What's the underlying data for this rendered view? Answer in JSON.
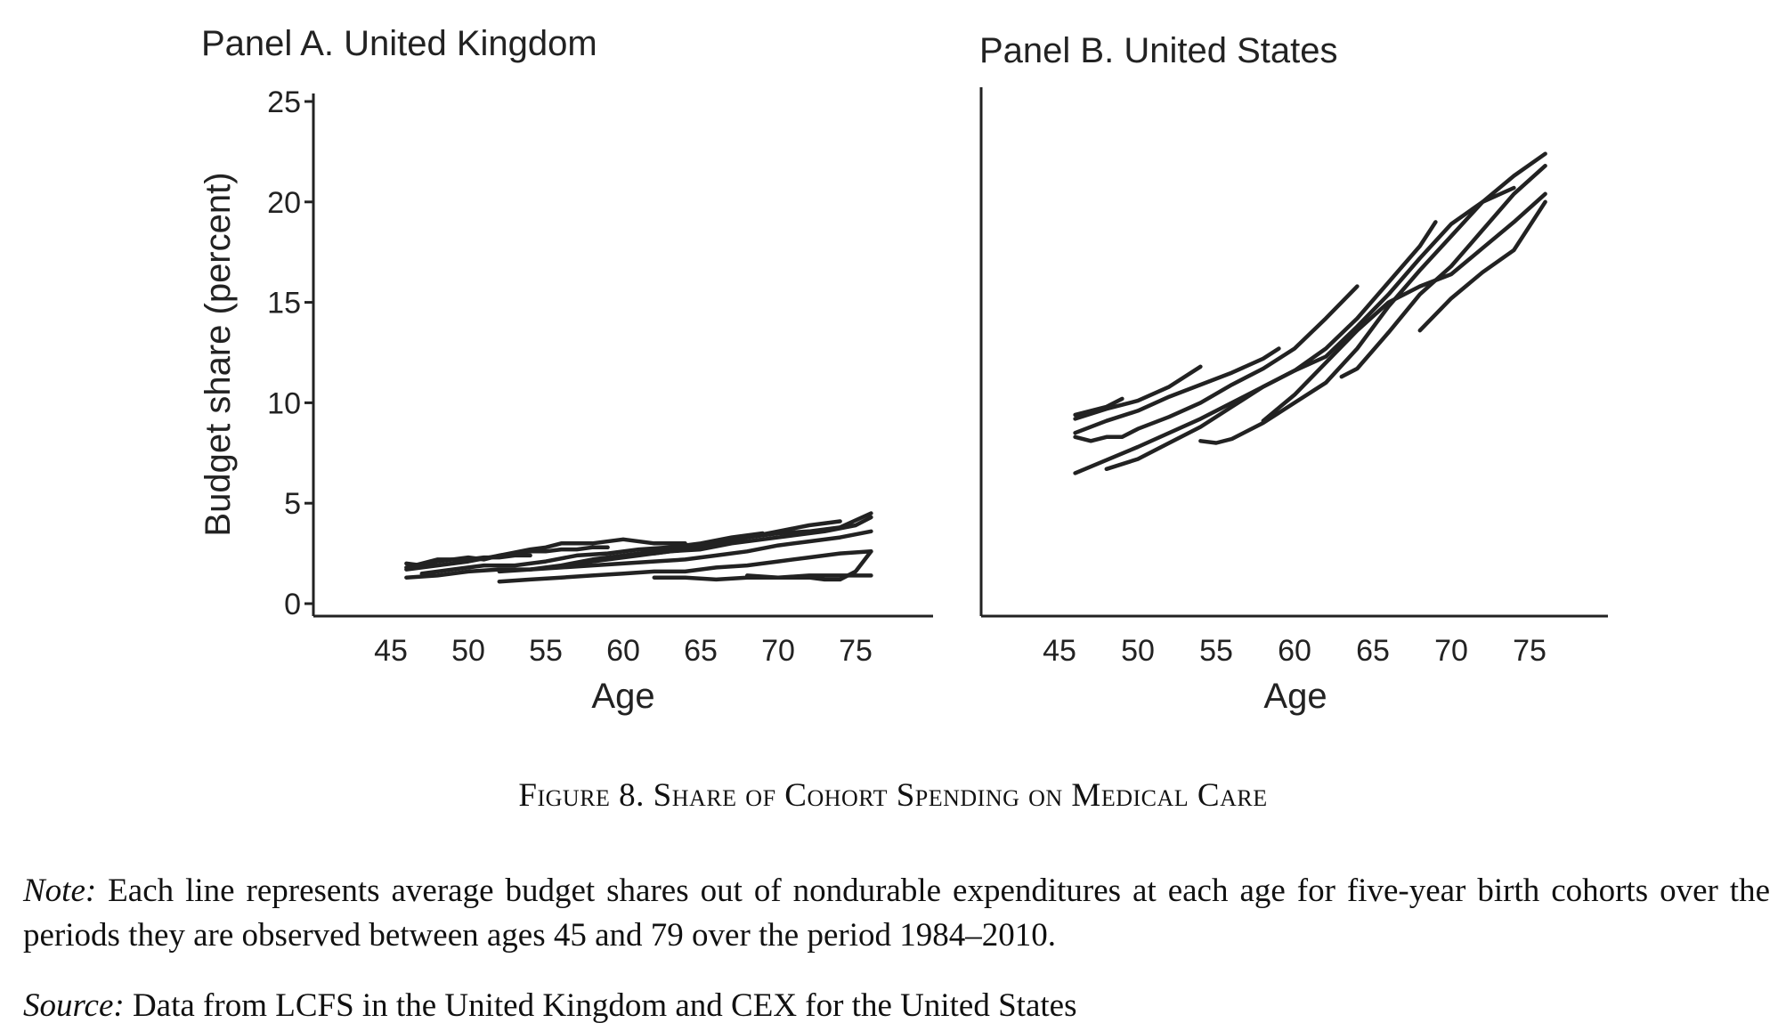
{
  "figure": {
    "caption": "Figure 8. Share of Cohort Spending on Medical Care",
    "note_label": "Note:",
    "note_text": "Each line represents average budget shares out of nondurable expenditures at each age for five-year birth cohorts over the periods they are observed between ages 45 and 79 over the period 1984–2010.",
    "source_label": "Source:",
    "source_text": "Data from LCFS in the United Kingdom and CEX for the United States"
  },
  "colors": {
    "line": "#222222",
    "axis": "#222222"
  },
  "chart_data": [
    {
      "type": "line",
      "title": "Panel A. United Kingdom",
      "xlabel": "Age",
      "ylabel": "Budget share (percent)",
      "xlim": [
        40,
        80
      ],
      "ylim": [
        0,
        25
      ],
      "xticks": [
        45,
        50,
        55,
        60,
        65,
        70,
        75
      ],
      "yticks": [
        0,
        5,
        10,
        15,
        20,
        25
      ],
      "grid": false,
      "series": [
        {
          "x": [
            46,
            47,
            48,
            49,
            50,
            51,
            52,
            53,
            54
          ],
          "values": [
            2.0,
            1.9,
            2.1,
            2.2,
            2.2,
            2.3,
            2.3,
            2.4,
            2.4
          ]
        },
        {
          "x": [
            46,
            47,
            48,
            49,
            50,
            51,
            52,
            53,
            54,
            55,
            56,
            57,
            58,
            59
          ],
          "values": [
            1.8,
            2.0,
            2.2,
            2.2,
            2.3,
            2.2,
            2.4,
            2.5,
            2.6,
            2.6,
            2.7,
            2.7,
            2.8,
            2.8
          ]
        },
        {
          "x": [
            46,
            48,
            50,
            52,
            54,
            55,
            56,
            58,
            60,
            62,
            64
          ],
          "values": [
            1.7,
            1.9,
            2.1,
            2.4,
            2.7,
            2.8,
            3.0,
            3.0,
            3.2,
            3.0,
            3.0
          ]
        },
        {
          "x": [
            47,
            49,
            51,
            53,
            55,
            57,
            59,
            61,
            63,
            65,
            67,
            69
          ],
          "values": [
            1.5,
            1.7,
            1.9,
            1.9,
            2.1,
            2.4,
            2.5,
            2.7,
            2.8,
            3.0,
            3.3,
            3.5
          ]
        },
        {
          "x": [
            52,
            54,
            56,
            58,
            60,
            62,
            64,
            66,
            68,
            70,
            72,
            74
          ],
          "values": [
            1.6,
            1.7,
            1.9,
            2.2,
            2.4,
            2.6,
            2.8,
            3.0,
            3.3,
            3.6,
            3.9,
            4.1
          ]
        },
        {
          "x": [
            57,
            59,
            61,
            63,
            65,
            67,
            69,
            71,
            73,
            75,
            76
          ],
          "values": [
            2.0,
            2.2,
            2.4,
            2.6,
            2.7,
            3.0,
            3.2,
            3.4,
            3.6,
            3.9,
            4.3
          ]
        },
        {
          "x": [
            62,
            64,
            66,
            68,
            70,
            72,
            74,
            76
          ],
          "values": [
            2.5,
            2.7,
            3.0,
            3.3,
            3.5,
            3.6,
            3.8,
            4.5
          ]
        },
        {
          "x": [
            46,
            48,
            50,
            52,
            54,
            56,
            58,
            60,
            62,
            64,
            66,
            68,
            70,
            72,
            74,
            76
          ],
          "values": [
            1.3,
            1.4,
            1.6,
            1.7,
            1.7,
            1.8,
            1.9,
            2.0,
            2.1,
            2.2,
            2.4,
            2.6,
            2.9,
            3.1,
            3.3,
            3.6
          ]
        },
        {
          "x": [
            52,
            54,
            56,
            58,
            60,
            62,
            64,
            66,
            68,
            70,
            72,
            74,
            76
          ],
          "values": [
            1.1,
            1.2,
            1.3,
            1.4,
            1.5,
            1.6,
            1.6,
            1.8,
            1.9,
            2.1,
            2.3,
            2.5,
            2.6
          ]
        },
        {
          "x": [
            62,
            64,
            66,
            68,
            70,
            72,
            74,
            76
          ],
          "values": [
            1.3,
            1.3,
            1.2,
            1.3,
            1.3,
            1.4,
            1.4,
            1.4
          ]
        },
        {
          "x": [
            68,
            70,
            72,
            73,
            74,
            75,
            76
          ],
          "values": [
            1.4,
            1.3,
            1.3,
            1.2,
            1.2,
            1.6,
            2.6
          ]
        }
      ]
    },
    {
      "type": "line",
      "title": "Panel B. United States",
      "xlabel": "Age",
      "ylabel": "",
      "xlim": [
        40,
        80
      ],
      "ylim": [
        0,
        25
      ],
      "xticks": [
        45,
        50,
        55,
        60,
        65,
        70,
        75
      ],
      "yticks": [],
      "grid": false,
      "series": [
        {
          "x": [
            46,
            47,
            48,
            49
          ],
          "values": [
            9.4,
            9.6,
            9.8,
            10.2
          ]
        },
        {
          "x": [
            46,
            48,
            50,
            52,
            54
          ],
          "values": [
            9.2,
            9.7,
            10.1,
            10.8,
            11.8
          ]
        },
        {
          "x": [
            46,
            48,
            50,
            52,
            54,
            56,
            58,
            59
          ],
          "values": [
            8.5,
            9.1,
            9.6,
            10.3,
            10.9,
            11.5,
            12.2,
            12.7
          ]
        },
        {
          "x": [
            46,
            47,
            48,
            49,
            50,
            52,
            54,
            56,
            58,
            60,
            62,
            64
          ],
          "values": [
            8.3,
            8.1,
            8.3,
            8.3,
            8.7,
            9.3,
            10.0,
            10.9,
            11.7,
            12.7,
            14.2,
            15.8
          ]
        },
        {
          "x": [
            46,
            50,
            54,
            58,
            60,
            62,
            64,
            66,
            68,
            69
          ],
          "values": [
            6.5,
            7.8,
            9.2,
            10.8,
            11.6,
            12.7,
            14.2,
            16.0,
            17.8,
            19.0
          ]
        },
        {
          "x": [
            48,
            50,
            52,
            54,
            56,
            58,
            60,
            62,
            64,
            66,
            68,
            70,
            72,
            74
          ],
          "values": [
            6.7,
            7.2,
            8.0,
            8.8,
            9.8,
            10.8,
            11.6,
            12.3,
            13.8,
            15.4,
            17.2,
            18.9,
            20.0,
            20.7
          ]
        },
        {
          "x": [
            54,
            55,
            56,
            58,
            60,
            62,
            64,
            66,
            68,
            70,
            72,
            74,
            76
          ],
          "values": [
            8.1,
            8.0,
            8.2,
            9.0,
            10.0,
            11.0,
            12.7,
            14.8,
            16.6,
            18.3,
            20.0,
            21.3,
            22.4
          ]
        },
        {
          "x": [
            58,
            60,
            62,
            64,
            66,
            68,
            70,
            72,
            74,
            76
          ],
          "values": [
            9.1,
            10.4,
            12.0,
            13.6,
            15.0,
            15.8,
            16.4,
            17.7,
            19.0,
            20.4
          ]
        },
        {
          "x": [
            63,
            64,
            66,
            68,
            70,
            72,
            74,
            76
          ],
          "values": [
            11.3,
            11.7,
            13.5,
            15.4,
            16.8,
            18.6,
            20.4,
            21.8
          ]
        },
        {
          "x": [
            68,
            70,
            72,
            74,
            76
          ],
          "values": [
            13.6,
            15.2,
            16.5,
            17.6,
            20.0
          ]
        }
      ]
    }
  ]
}
